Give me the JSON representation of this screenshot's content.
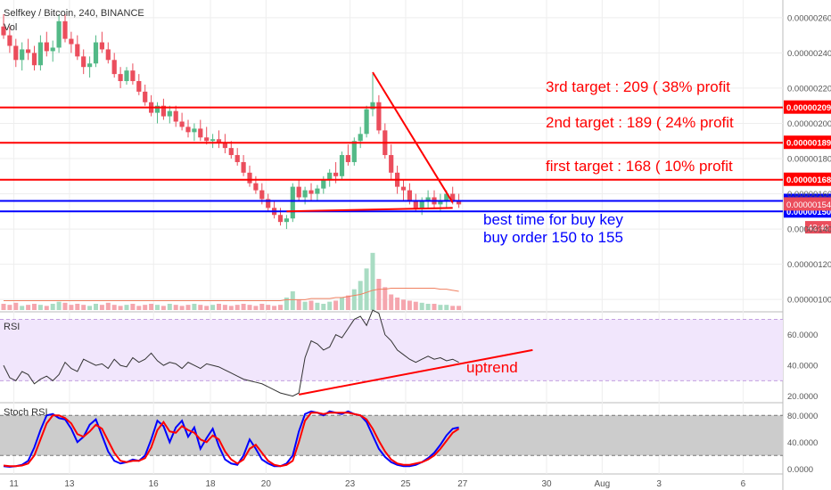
{
  "header": {
    "symbol": "Selfkey / Bitcoin, 240, BINANCE",
    "vol_label": "Vol",
    "rsi_label": "RSI",
    "stoch_label": "Stoch RSI"
  },
  "colors": {
    "up": "#53b987",
    "down": "#eb4d5c",
    "annot_red": "#ff0000",
    "annot_blue": "#0000ff",
    "rsi_line": "#333333",
    "rsi_band": "#f1e6fc",
    "stoch_k": "#0000ff",
    "stoch_d": "#ff0000",
    "stoch_band": "#cccccc",
    "grid": "#eeeeee",
    "axis_text": "#555555"
  },
  "annotations": {
    "target3": "3rd target : 209 ( 38% profit",
    "target2": "2nd target : 189 ( 24% profit",
    "target1": "first target : 168 ( 10% profit",
    "buy1": "best time for buy key",
    "buy2": "buy order 150 to 155",
    "uptrend": "uptrend"
  },
  "chart_data": [
    {
      "type": "candlestick",
      "title": "Selfkey / Bitcoin, 240, BINANCE",
      "price_axis_ticks": [
        "0.00000260",
        "0.00000240",
        "0.00000220",
        "0.00000200",
        "0.00000180",
        "0.00000160",
        "0.00000140",
        "0.00000120",
        "0.00000100"
      ],
      "price_axis_values": [
        260,
        240,
        220,
        200,
        180,
        160,
        140,
        120,
        100
      ],
      "ylim": [
        94,
        266
      ],
      "horizontal_lines": [
        {
          "value": 209,
          "label": "0.00000209",
          "color": "#ff0000"
        },
        {
          "value": 189,
          "label": "0.00000189",
          "color": "#ff0000"
        },
        {
          "value": 168,
          "label": "0.00000168",
          "color": "#ff0000"
        },
        {
          "value": 156,
          "label": "0.00000156",
          "color": "#0000ff"
        },
        {
          "value": 150,
          "label": "0.00000150",
          "color": "#0000ff"
        }
      ],
      "price_badges": [
        {
          "value": 154,
          "label": "0.00000154",
          "color": "#eb4d5c"
        }
      ],
      "countdown_label": "42:40",
      "ohlc": [
        [
          255,
          262,
          248,
          250
        ],
        [
          250,
          255,
          240,
          244
        ],
        [
          244,
          248,
          232,
          236
        ],
        [
          236,
          246,
          230,
          242
        ],
        [
          242,
          248,
          236,
          240
        ],
        [
          240,
          244,
          230,
          233
        ],
        [
          233,
          250,
          230,
          246
        ],
        [
          246,
          252,
          238,
          241
        ],
        [
          241,
          247,
          235,
          243
        ],
        [
          243,
          262,
          240,
          258
        ],
        [
          258,
          262,
          246,
          248
        ],
        [
          248,
          252,
          240,
          245
        ],
        [
          245,
          250,
          236,
          238
        ],
        [
          238,
          242,
          228,
          232
        ],
        [
          232,
          238,
          226,
          234
        ],
        [
          234,
          250,
          232,
          246
        ],
        [
          246,
          252,
          240,
          242
        ],
        [
          242,
          246,
          234,
          236
        ],
        [
          236,
          240,
          226,
          228
        ],
        [
          228,
          232,
          220,
          224
        ],
        [
          224,
          232,
          222,
          230
        ],
        [
          230,
          234,
          222,
          224
        ],
        [
          224,
          228,
          216,
          218
        ],
        [
          218,
          222,
          210,
          212
        ],
        [
          212,
          216,
          204,
          206
        ],
        [
          206,
          212,
          200,
          210
        ],
        [
          210,
          214,
          202,
          204
        ],
        [
          204,
          210,
          200,
          207
        ],
        [
          207,
          210,
          198,
          201
        ],
        [
          201,
          206,
          196,
          198
        ],
        [
          198,
          202,
          192,
          195
        ],
        [
          195,
          200,
          190,
          197
        ],
        [
          197,
          202,
          190,
          192
        ],
        [
          192,
          198,
          188,
          190
        ],
        [
          190,
          194,
          186,
          191
        ],
        [
          191,
          196,
          186,
          189
        ],
        [
          189,
          194,
          183,
          186
        ],
        [
          186,
          190,
          180,
          182
        ],
        [
          182,
          186,
          176,
          178
        ],
        [
          178,
          182,
          170,
          172
        ],
        [
          172,
          176,
          164,
          166
        ],
        [
          166,
          170,
          160,
          162
        ],
        [
          162,
          166,
          154,
          157
        ],
        [
          157,
          160,
          150,
          152
        ],
        [
          152,
          156,
          146,
          148
        ],
        [
          148,
          152,
          142,
          144
        ],
        [
          144,
          148,
          140,
          146
        ],
        [
          146,
          166,
          144,
          164
        ],
        [
          164,
          168,
          156,
          158
        ],
        [
          158,
          164,
          154,
          162
        ],
        [
          162,
          166,
          156,
          160
        ],
        [
          160,
          165,
          156,
          163
        ],
        [
          163,
          170,
          160,
          168
        ],
        [
          168,
          174,
          164,
          172
        ],
        [
          172,
          178,
          166,
          170
        ],
        [
          170,
          184,
          168,
          182
        ],
        [
          182,
          188,
          176,
          178
        ],
        [
          178,
          192,
          176,
          190
        ],
        [
          190,
          198,
          186,
          194
        ],
        [
          194,
          210,
          192,
          208
        ],
        [
          208,
          228,
          204,
          212
        ],
        [
          212,
          216,
          194,
          196
        ],
        [
          196,
          200,
          180,
          182
        ],
        [
          182,
          188,
          168,
          172
        ],
        [
          172,
          176,
          160,
          164
        ],
        [
          164,
          168,
          156,
          162
        ],
        [
          162,
          166,
          154,
          156
        ],
        [
          156,
          160,
          150,
          152
        ],
        [
          152,
          158,
          148,
          156
        ],
        [
          156,
          162,
          152,
          158
        ],
        [
          158,
          162,
          152,
          154
        ],
        [
          154,
          160,
          150,
          156
        ],
        [
          156,
          162,
          152,
          160
        ],
        [
          160,
          164,
          154,
          156
        ],
        [
          156,
          160,
          152,
          154
        ]
      ],
      "volume": [
        6,
        5,
        7,
        4,
        5,
        6,
        5,
        4,
        6,
        8,
        7,
        5,
        6,
        5,
        4,
        6,
        5,
        7,
        5,
        4,
        5,
        6,
        4,
        5,
        6,
        5,
        4,
        6,
        5,
        4,
        5,
        6,
        5,
        4,
        5,
        6,
        5,
        4,
        5,
        6,
        5,
        4,
        6,
        5,
        4,
        5,
        12,
        18,
        10,
        8,
        9,
        7,
        6,
        8,
        9,
        12,
        14,
        20,
        28,
        40,
        55,
        30,
        22,
        15,
        12,
        10,
        9,
        8,
        7,
        6,
        6,
        5,
        5,
        4,
        4
      ],
      "volume_ma": [
        9,
        9,
        9,
        9,
        9,
        9,
        9,
        9,
        9,
        9,
        9,
        9,
        9,
        9,
        9,
        9,
        9,
        9,
        9,
        9,
        9,
        9,
        9,
        9,
        9,
        9,
        9,
        9,
        9,
        9,
        9,
        9,
        9,
        9,
        9,
        9,
        9,
        9,
        9,
        9,
        9,
        9,
        9,
        9,
        9,
        9,
        10,
        10,
        10,
        10,
        11,
        11,
        11,
        11,
        12,
        12,
        13,
        14,
        15,
        17,
        19,
        20,
        20,
        21,
        21,
        21,
        21,
        21,
        21,
        21,
        21,
        20,
        20,
        19,
        18
      ],
      "trendlines": [
        {
          "from": [
            60,
            229
          ],
          "to": [
            73,
            155
          ],
          "color": "#ff0000"
        },
        {
          "from": [
            46,
            150
          ],
          "to": [
            73,
            152
          ],
          "color": "#ff0000"
        }
      ]
    },
    {
      "type": "line",
      "title": "RSI",
      "ylim": [
        18,
        72
      ],
      "band": [
        30,
        70
      ],
      "y_ticks": [
        "60.0000",
        "40.0000",
        "20.0000"
      ],
      "y_tick_values": [
        60,
        40,
        20
      ],
      "series": [
        {
          "values": [
            40,
            32,
            30,
            36,
            34,
            28,
            31,
            33,
            30,
            34,
            42,
            38,
            36,
            44,
            42,
            40,
            41,
            38,
            44,
            40,
            39,
            45,
            42,
            44,
            48,
            43,
            40,
            42,
            41,
            38,
            42,
            40,
            38,
            41,
            40,
            39,
            37,
            35,
            33,
            31,
            30,
            29,
            28,
            26,
            24,
            22,
            21,
            20,
            22,
            45,
            56,
            54,
            50,
            52,
            60,
            58,
            64,
            70,
            72,
            66,
            76,
            74,
            60,
            56,
            50,
            47,
            44,
            42,
            44,
            46,
            44,
            45,
            43,
            44,
            42
          ]
        }
      ],
      "trendlines": [
        {
          "from": [
            48,
            21
          ],
          "to": [
            86,
            50
          ],
          "color": "#ff0000"
        }
      ]
    },
    {
      "type": "line",
      "title": "Stoch RSI",
      "ylim": [
        -5,
        95
      ],
      "band": [
        20,
        80
      ],
      "y_ticks": [
        "80.0000",
        "40.0000",
        "0.0000"
      ],
      "y_tick_values": [
        80,
        40,
        0
      ],
      "series": [
        {
          "name": "K",
          "values": [
            4,
            3,
            4,
            6,
            12,
            32,
            58,
            80,
            82,
            76,
            74,
            60,
            40,
            48,
            66,
            74,
            50,
            26,
            12,
            8,
            10,
            14,
            12,
            20,
            44,
            72,
            64,
            40,
            62,
            72,
            48,
            62,
            30,
            46,
            60,
            34,
            14,
            8,
            6,
            20,
            44,
            30,
            14,
            8,
            4,
            4,
            8,
            20,
            56,
            82,
            86,
            84,
            80,
            86,
            84,
            82,
            86,
            82,
            80,
            70,
            50,
            30,
            18,
            10,
            6,
            4,
            4,
            6,
            10,
            16,
            24,
            36,
            50,
            60,
            62
          ]
        },
        {
          "name": "D",
          "values": [
            5,
            4,
            4,
            5,
            8,
            20,
            44,
            68,
            80,
            80,
            76,
            68,
            52,
            48,
            56,
            66,
            60,
            42,
            24,
            12,
            10,
            12,
            12,
            16,
            32,
            58,
            70,
            56,
            54,
            64,
            58,
            54,
            44,
            40,
            50,
            44,
            26,
            14,
            8,
            14,
            30,
            36,
            24,
            12,
            6,
            4,
            6,
            12,
            40,
            72,
            84,
            84,
            82,
            84,
            84,
            84,
            84,
            82,
            80,
            74,
            60,
            42,
            26,
            14,
            8,
            6,
            6,
            8,
            10,
            14,
            20,
            30,
            42,
            54,
            60
          ]
        }
      ]
    }
  ],
  "time_axis": {
    "labels": [
      "11",
      "13",
      "16",
      "18",
      "20",
      "23",
      "25",
      "27",
      "30",
      "Aug",
      "3",
      "6"
    ],
    "positions": [
      0.8,
      5.1,
      11.6,
      16.0,
      20.3,
      26.8,
      31.1,
      35.5,
      42.0,
      46.3,
      50.7,
      57.2
    ]
  }
}
